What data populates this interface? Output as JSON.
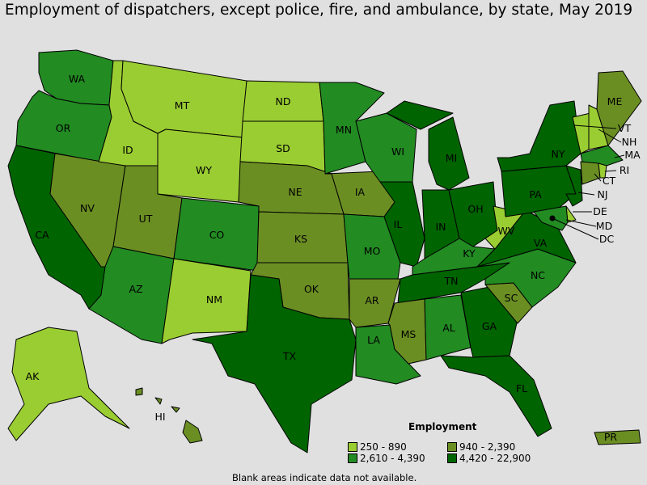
{
  "title": "Employment of dispatchers, except police, fire, and ambulance, by state, May 2019",
  "legend": {
    "title": "Employment",
    "bins": [
      {
        "label": "250 - 890",
        "color": "#9acd32"
      },
      {
        "label": "940 - 2,390",
        "color": "#6b8e23"
      },
      {
        "label": "2,610 - 4,390",
        "color": "#228b22"
      },
      {
        "label": "4,420 - 22,900",
        "color": "#006400"
      }
    ]
  },
  "note": "Blank areas indicate data not available.",
  "states": {
    "WA": 2,
    "OR": 2,
    "CA": 3,
    "NV": 1,
    "ID": 0,
    "MT": 0,
    "WY": 0,
    "UT": 1,
    "AZ": 2,
    "CO": 2,
    "NM": 0,
    "ND": 0,
    "SD": 0,
    "NE": 1,
    "KS": 1,
    "OK": 1,
    "TX": 3,
    "MN": 2,
    "IA": 1,
    "MO": 2,
    "AR": 1,
    "LA": 2,
    "WI": 2,
    "IL": 3,
    "MI": 3,
    "IN": 3,
    "OH": 3,
    "KY": 2,
    "TN": 3,
    "MS": 1,
    "AL": 2,
    "GA": 3,
    "FL": 3,
    "SC": 1,
    "NC": 2,
    "VA": 3,
    "WV": 0,
    "PA": 3,
    "NY": 3,
    "VT": 0,
    "NH": 0,
    "ME": 1,
    "MA": 2,
    "CT": 1,
    "RI": 0,
    "NJ": 3,
    "DE": 0,
    "MD": 2,
    "DC": 3,
    "AK": 0,
    "HI": 1,
    "PR": 1
  }
}
